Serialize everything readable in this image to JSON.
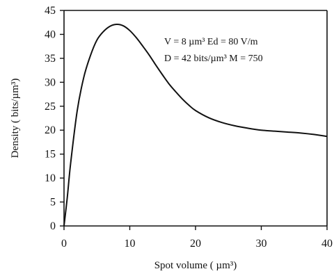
{
  "chart_data": {
    "type": "line",
    "title": "",
    "xlabel": "Spot volume ( µm³)",
    "ylabel": "Density ( bits/µm³)",
    "xlim": [
      0,
      40
    ],
    "ylim": [
      0,
      45
    ],
    "x_ticks": [
      0,
      10,
      20,
      30,
      40
    ],
    "y_ticks": [
      0,
      5,
      10,
      15,
      20,
      25,
      30,
      35,
      40,
      45
    ],
    "grid": false,
    "series": [
      {
        "x": [
          0,
          0.5,
          1,
          2,
          3,
          4,
          5,
          6,
          7,
          8,
          9,
          10,
          11,
          12,
          13,
          14,
          15,
          16,
          17,
          18,
          19,
          20,
          22,
          24,
          26,
          28,
          30,
          32,
          34,
          36,
          38,
          40
        ],
        "values": [
          0,
          6,
          13,
          24,
          31,
          35.5,
          38.8,
          40.6,
          41.7,
          42.1,
          41.8,
          40.8,
          39.3,
          37.5,
          35.6,
          33.5,
          31.5,
          29.6,
          28,
          26.5,
          25.2,
          24.1,
          22.6,
          21.6,
          20.9,
          20.4,
          20,
          19.8,
          19.6,
          19.4,
          19.1,
          18.7
        ]
      }
    ],
    "annotations": [
      "V = 8 µm³  Ed = 80 V/m",
      "D = 42 bits/µm³  M = 750"
    ]
  }
}
